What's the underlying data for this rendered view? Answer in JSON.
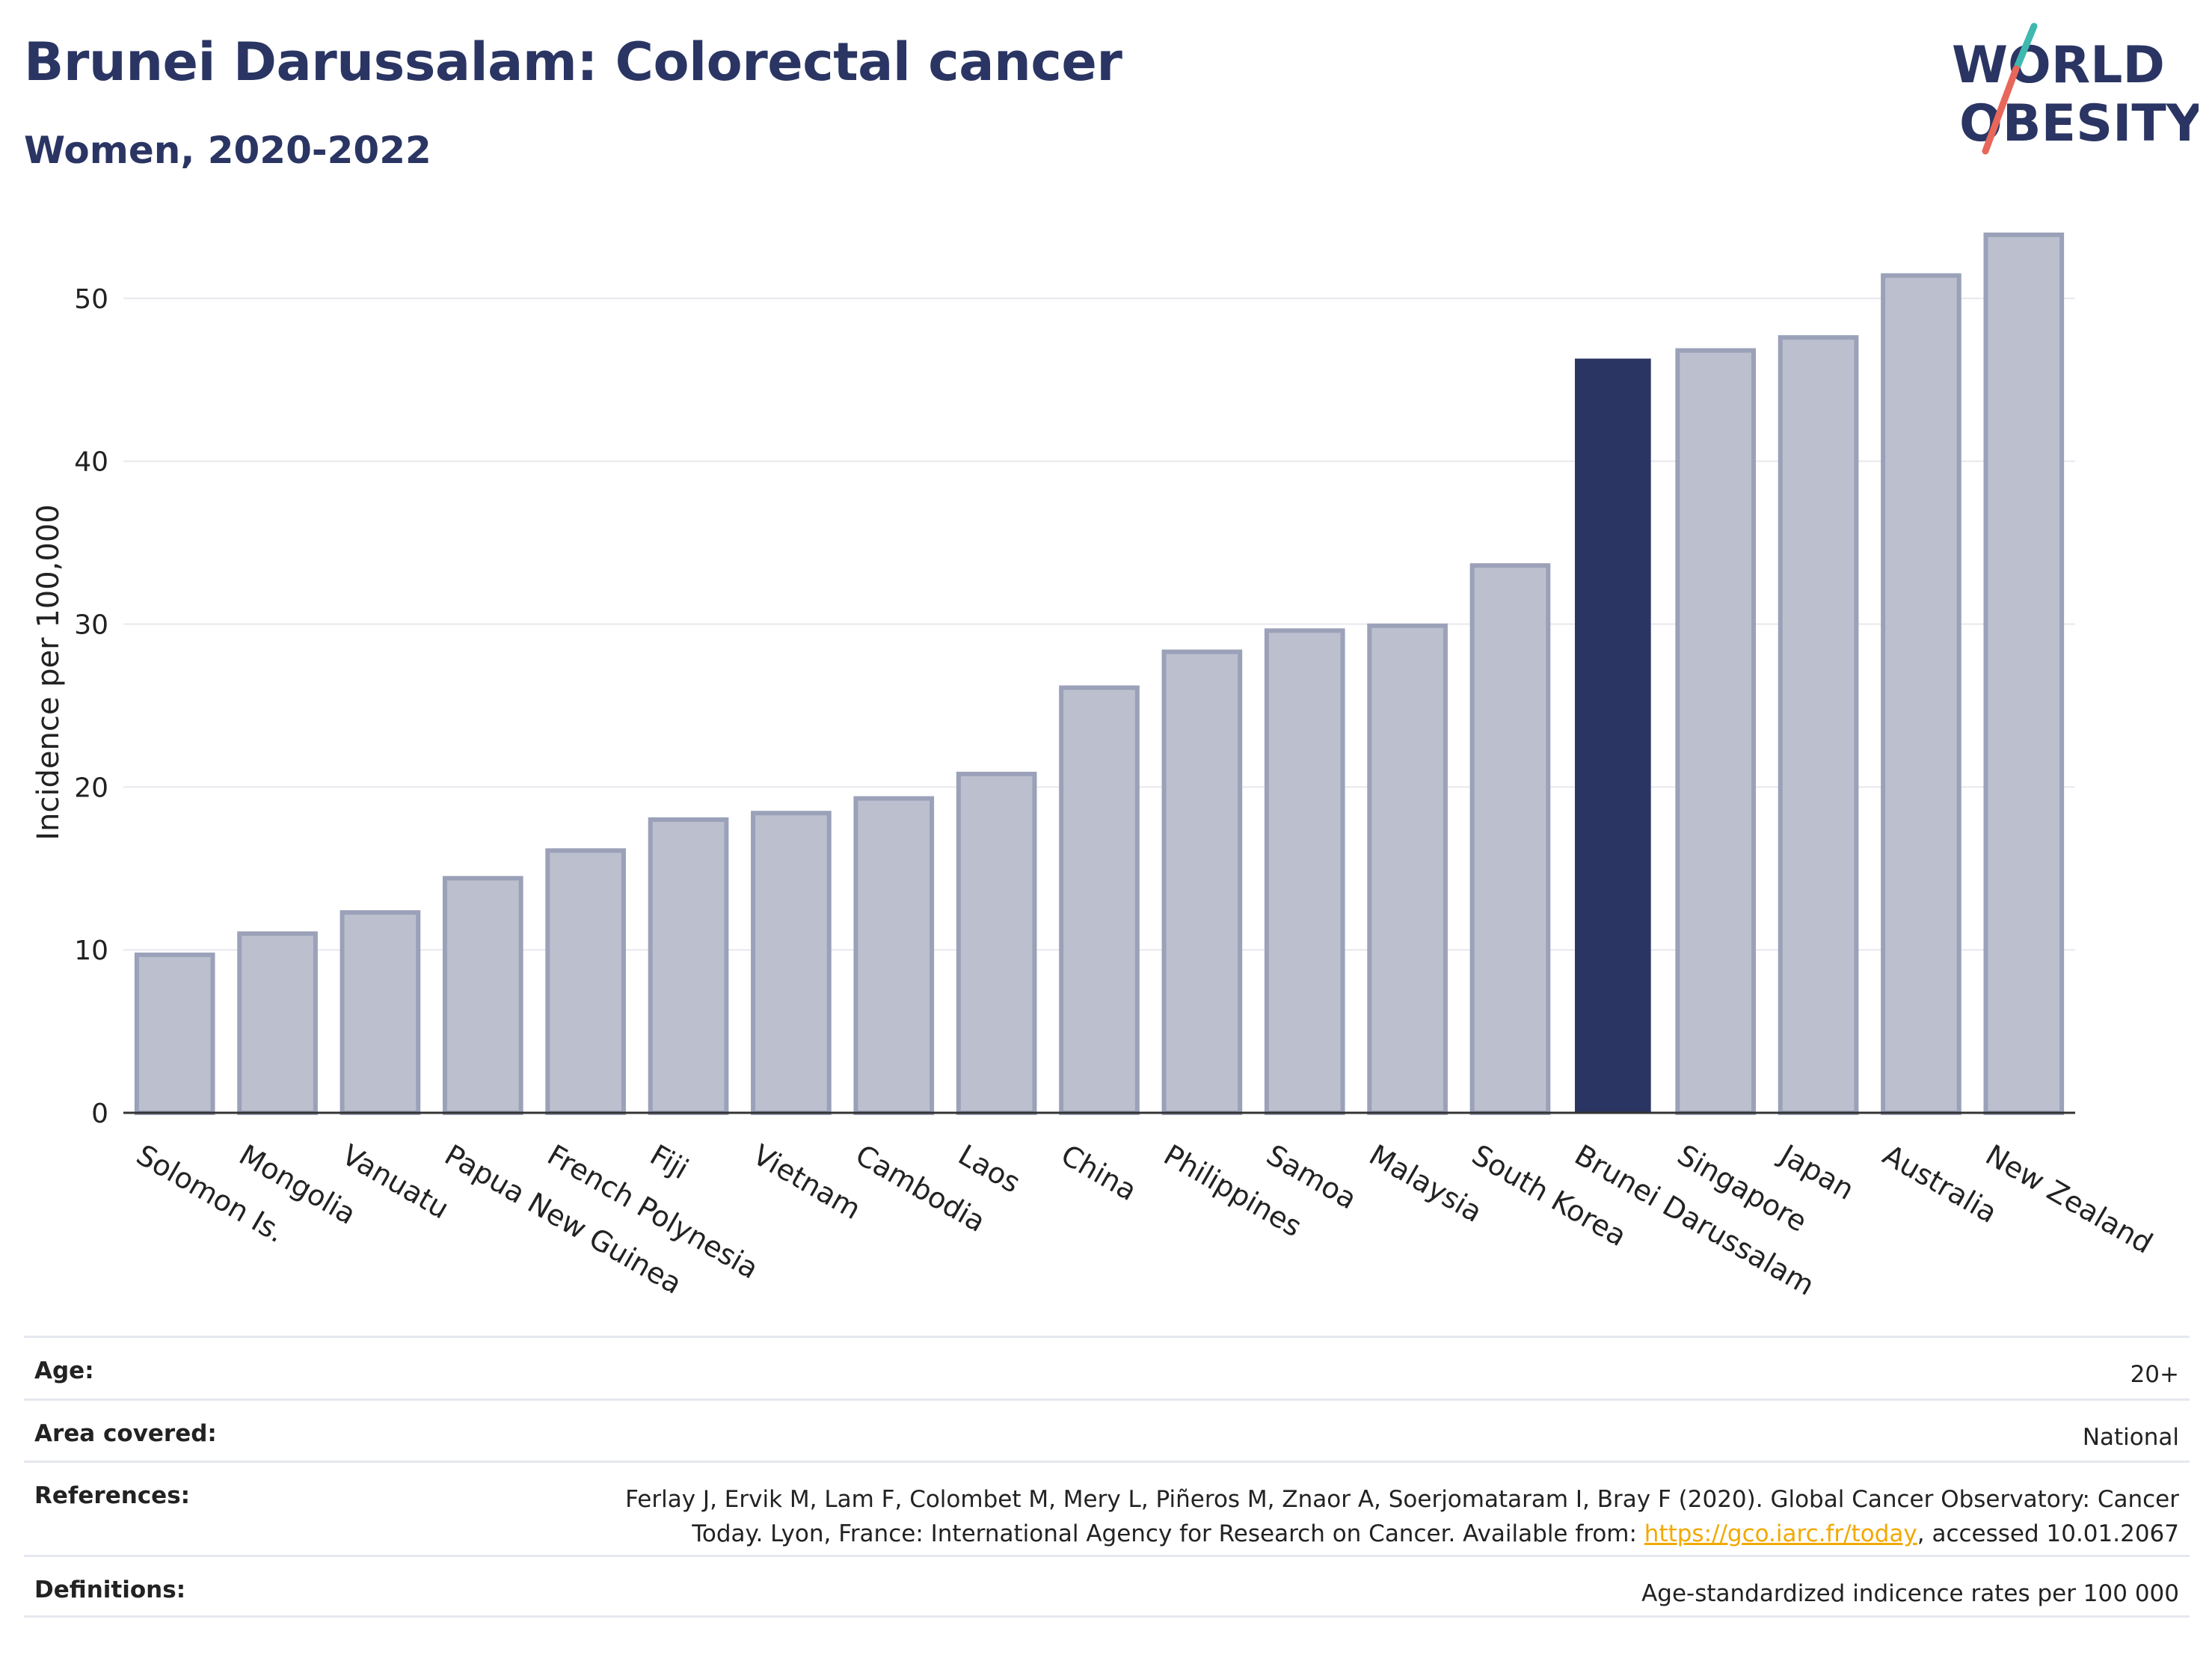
{
  "header": {
    "title": "Brunei Darussalam: Colorectal cancer",
    "subtitle": "Women, 2020-2022"
  },
  "logo": {
    "line1": "WORLD",
    "line2": "OBESITY",
    "colors": {
      "text": "#2a3563",
      "slash_teal": "#3fb8af",
      "slash_red": "#e8675a"
    }
  },
  "colors": {
    "bar_default": "#bcc0ce",
    "bar_outline": "#9aa1b8",
    "bar_highlight": "#2a3563",
    "grid": "#e8e8ee",
    "axis": "#333333"
  },
  "chart_data": {
    "type": "bar",
    "ylabel": "Incidence per 100,000",
    "ylim": [
      0,
      55
    ],
    "yticks": [
      0,
      10,
      20,
      30,
      40,
      50
    ],
    "grid": true,
    "highlight": "Brunei Darussalam",
    "categories": [
      "Solomon Is.",
      "Mongolia",
      "Vanuatu",
      "Papua New Guinea",
      "French Polynesia",
      "Fiji",
      "Vietnam",
      "Cambodia",
      "Laos",
      "China",
      "Philippines",
      "Samoa",
      "Malaysia",
      "South Korea",
      "Brunei Darussalam",
      "Singapore",
      "Japan",
      "Australia",
      "New Zealand"
    ],
    "values": [
      9.7,
      11.0,
      12.3,
      14.4,
      16.1,
      18.0,
      18.4,
      19.3,
      20.8,
      26.1,
      28.3,
      29.6,
      29.9,
      33.6,
      46.3,
      46.8,
      47.6,
      51.4,
      53.9
    ]
  },
  "meta": {
    "age": {
      "label": "Age:",
      "value": "20+"
    },
    "area": {
      "label": "Area covered:",
      "value": "National"
    },
    "references": {
      "label": "References:",
      "text1": "Ferlay J, Ervik M, Lam F, Colombet M, Mery L, Piñeros M, Znaor A, Soerjomataram I, Bray F (2020). Global Cancer Observatory: Cancer Today. Lyon, France: International Agency for Research on Cancer. Available from: ",
      "link": "https://gco.iarc.fr/today",
      "text2": ", accessed 10.01.2067"
    },
    "definitions": {
      "label": "Definitions:",
      "value": "Age-standardized indicence rates per 100 000"
    }
  }
}
